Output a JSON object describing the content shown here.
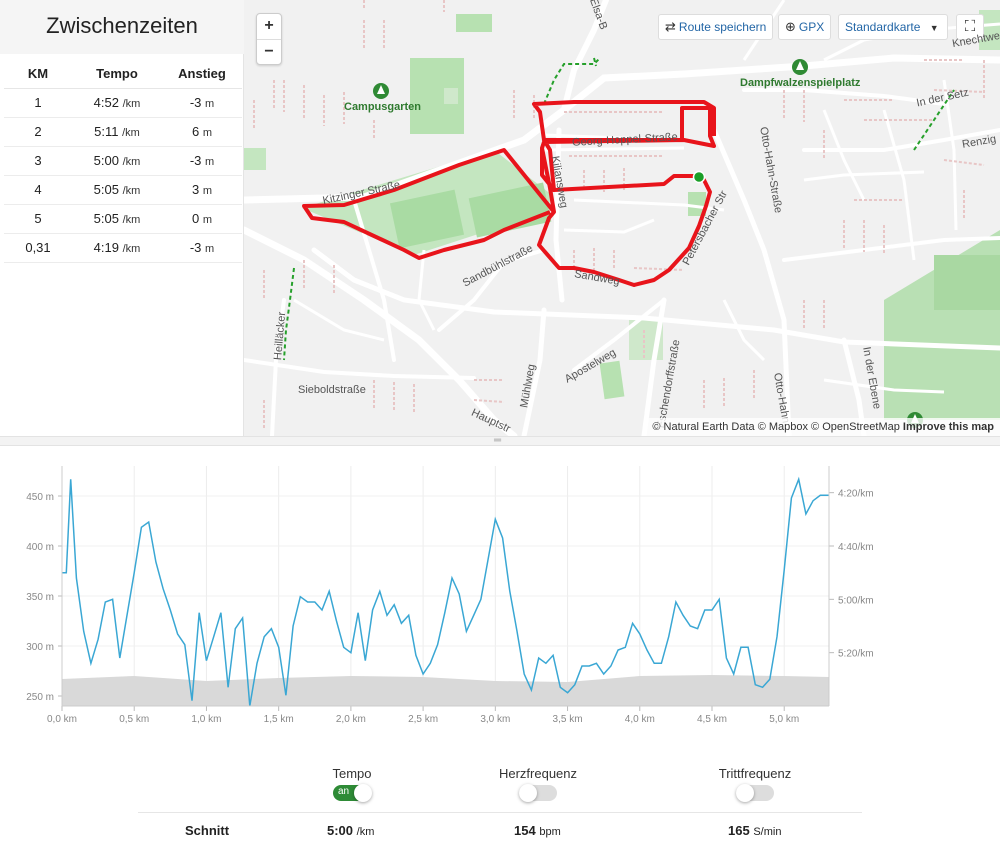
{
  "splits": {
    "title": "Zwischenzeiten",
    "headers": [
      "KM",
      "Tempo",
      "Anstieg"
    ],
    "rows": [
      {
        "km": "1",
        "tempo": "4:52",
        "tempo_unit": "/km",
        "climb": "-3",
        "climb_unit": "m"
      },
      {
        "km": "2",
        "tempo": "5:11",
        "tempo_unit": "/km",
        "climb": "6",
        "climb_unit": "m"
      },
      {
        "km": "3",
        "tempo": "5:00",
        "tempo_unit": "/km",
        "climb": "-3",
        "climb_unit": "m"
      },
      {
        "km": "4",
        "tempo": "5:05",
        "tempo_unit": "/km",
        "climb": "3",
        "climb_unit": "m"
      },
      {
        "km": "5",
        "tempo": "5:05",
        "tempo_unit": "/km",
        "climb": "0",
        "climb_unit": "m"
      },
      {
        "km": "0,31",
        "tempo": "4:19",
        "tempo_unit": "/km",
        "climb": "-3",
        "climb_unit": "m"
      }
    ]
  },
  "map": {
    "zoom_in": "+",
    "zoom_out": "−",
    "save_route": "Route speichern",
    "gpx": "GPX",
    "map_style": "Standardkarte",
    "attribution": "© Natural Earth Data © Mapbox © OpenStreetMap",
    "improve": "Improve this map",
    "route_color": "#e8141b",
    "places": [
      "Campusgarten",
      "Dampfwalzenspielplatz"
    ],
    "streets": [
      "Kitzinger Straße",
      "Sandbühlstraße",
      "Georg-Hoppel-Straße",
      "Otto-Hahn-Straße",
      "In der Setz",
      "Renzig",
      "Knechtwe",
      "Elsa-B",
      "Heilläcker",
      "Sieboldstraße",
      "Hauptstr",
      "Mühlweg",
      "Apostelweg",
      "Eschendorffstraße",
      "Otto-Hahn",
      "In der Ebene",
      "Sandweg",
      "Petersbacher Str",
      "Kiliansweg"
    ]
  },
  "chart": {
    "line_color": "#3aa7d4",
    "elevation_color": "#d9d9d9",
    "left_ticks": [
      "450 m",
      "400 m",
      "350 m",
      "300 m",
      "250 m"
    ],
    "right_ticks": [
      "4:20/km",
      "4:40/km",
      "5:00/km",
      "5:20/km"
    ],
    "x_ticks": [
      "0,0 km",
      "0,5 km",
      "1,0 km",
      "1,5 km",
      "2,0 km",
      "2,5 km",
      "3,0 km",
      "3,5 km",
      "4,0 km",
      "4,5 km",
      "5,0 km"
    ]
  },
  "chart_data": {
    "type": "line",
    "x_unit": "km",
    "xlim": [
      0,
      5.31
    ],
    "y_left_range_m": [
      240,
      480
    ],
    "y_right_range_sec_per_km": [
      250,
      340
    ],
    "series": [
      {
        "name": "Tempo",
        "x": [
          0.0,
          0.03,
          0.06,
          0.1,
          0.15,
          0.2,
          0.25,
          0.3,
          0.35,
          0.4,
          0.45,
          0.5,
          0.55,
          0.6,
          0.65,
          0.7,
          0.75,
          0.8,
          0.85,
          0.9,
          0.95,
          1.0,
          1.05,
          1.1,
          1.15,
          1.2,
          1.25,
          1.3,
          1.35,
          1.4,
          1.45,
          1.5,
          1.55,
          1.6,
          1.65,
          1.7,
          1.75,
          1.8,
          1.85,
          1.9,
          1.95,
          2.0,
          2.05,
          2.1,
          2.15,
          2.2,
          2.25,
          2.3,
          2.35,
          2.4,
          2.45,
          2.5,
          2.55,
          2.6,
          2.65,
          2.7,
          2.75,
          2.8,
          2.85,
          2.9,
          2.95,
          3.0,
          3.05,
          3.1,
          3.15,
          3.2,
          3.25,
          3.3,
          3.35,
          3.4,
          3.45,
          3.5,
          3.55,
          3.6,
          3.65,
          3.7,
          3.75,
          3.8,
          3.85,
          3.9,
          3.95,
          4.0,
          4.05,
          4.1,
          4.15,
          4.2,
          4.25,
          4.3,
          4.35,
          4.4,
          4.45,
          4.5,
          4.55,
          4.6,
          4.65,
          4.7,
          4.75,
          4.8,
          4.85,
          4.9,
          4.95,
          5.0,
          5.05,
          5.1,
          5.15,
          5.2,
          5.25,
          5.31
        ],
        "y_sec_per_km": [
          290,
          290,
          255,
          292,
          312,
          324,
          315,
          301,
          300,
          322,
          306,
          290,
          273,
          271,
          286,
          296,
          304,
          313,
          317,
          338,
          305,
          323,
          314,
          305,
          333,
          311,
          307,
          340,
          324,
          314,
          311,
          318,
          336,
          310,
          299,
          301,
          301,
          304,
          297,
          308,
          318,
          320,
          305,
          323,
          304,
          297,
          306,
          302,
          309,
          306,
          321,
          328,
          324,
          317,
          305,
          292,
          298,
          312,
          306,
          300,
          285,
          270,
          277,
          297,
          312,
          328,
          334,
          322,
          324,
          321,
          333,
          335,
          332,
          325,
          325,
          324,
          328,
          325,
          319,
          318,
          309,
          313,
          319,
          324,
          324,
          314,
          301,
          306,
          310,
          311,
          304,
          304,
          300,
          322,
          328,
          318,
          318,
          332,
          333,
          330,
          314,
          289,
          262,
          255,
          268,
          263,
          261,
          261
        ]
      },
      {
        "name": "Höhe",
        "x": [
          0,
          0.5,
          1.0,
          1.5,
          2.0,
          2.5,
          3.0,
          3.5,
          4.0,
          4.5,
          5.0,
          5.31
        ],
        "y_m": [
          267,
          270,
          265,
          268,
          270,
          269,
          265,
          264,
          270,
          271,
          270,
          269
        ]
      }
    ]
  },
  "toggles": [
    {
      "label": "Tempo",
      "state": "on",
      "on_text": "an"
    },
    {
      "label": "Herzfrequenz",
      "state": "off"
    },
    {
      "label": "Trittfrequenz",
      "state": "off"
    }
  ],
  "averages": {
    "label": "Schnitt",
    "tempo": "5:00",
    "tempo_unit": "/km",
    "hr": "154",
    "hr_unit": "bpm",
    "cadence": "165",
    "cadence_unit": "S/min"
  }
}
